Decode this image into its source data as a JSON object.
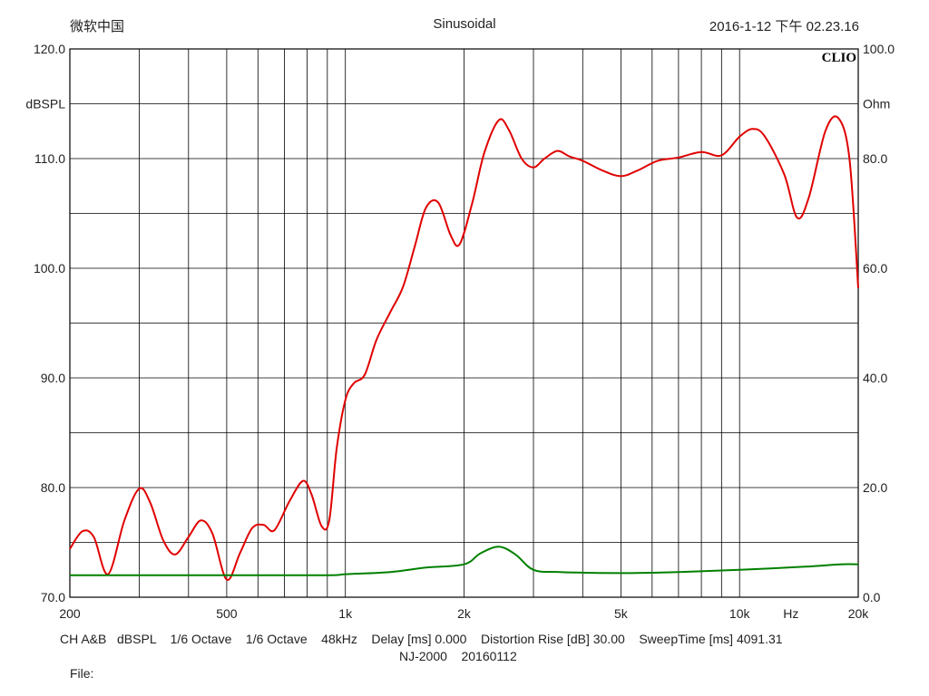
{
  "header": {
    "brand": "微软中国",
    "title": "Sinusoidal",
    "timestamp": "2016-1-12 下午 02.23.16"
  },
  "logo_text": "CLIO",
  "footer": {
    "line1": "CH A&B   dBSPL    1/6 Octave    1/6 Octave    48kHz    Delay [ms] 0.000    Distortion Rise [dB] 30.00    SweepTime [ms] 4091.31",
    "line2": "NJ-2000    20160112",
    "line3": "File:"
  },
  "chart_data": {
    "type": "line",
    "xscale": "log",
    "xlim": [
      200,
      20000
    ],
    "x_ticks": [
      {
        "value": 200,
        "label": "200"
      },
      {
        "value": 500,
        "label": "500"
      },
      {
        "value": 1000,
        "label": "1k"
      },
      {
        "value": 2000,
        "label": "2k"
      },
      {
        "value": 5000,
        "label": "5k"
      },
      {
        "value": 10000,
        "label": "10k"
      },
      {
        "value": 20000,
        "label": "20k"
      }
    ],
    "x_unit": "Hz",
    "left_axis": {
      "unit": "dBSPL",
      "ylim": [
        70,
        120
      ],
      "ticks": [
        {
          "value": 70,
          "label": "70.0"
        },
        {
          "value": 80,
          "label": "80.0"
        },
        {
          "value": 90,
          "label": "90.0"
        },
        {
          "value": 100,
          "label": "100.0"
        },
        {
          "value": 110,
          "label": "110.0"
        },
        {
          "value": 120,
          "label": "120.0"
        }
      ]
    },
    "right_axis": {
      "unit": "Ohm",
      "ylim": [
        0,
        100
      ],
      "ticks": [
        {
          "value": 0,
          "label": "0.0"
        },
        {
          "value": 20,
          "label": "20.0"
        },
        {
          "value": 40,
          "label": "40.0"
        },
        {
          "value": 60,
          "label": "60.0"
        },
        {
          "value": 80,
          "label": "80.0"
        },
        {
          "value": 100,
          "label": "100.0"
        }
      ]
    },
    "grid": true,
    "series": [
      {
        "axis": "left",
        "color": "#e00000",
        "points": [
          [
            200,
            74.4
          ],
          [
            215,
            76.0
          ],
          [
            230,
            75.5
          ],
          [
            250,
            72.1
          ],
          [
            275,
            77.0
          ],
          [
            300,
            79.9
          ],
          [
            320,
            78.6
          ],
          [
            345,
            75.2
          ],
          [
            370,
            73.9
          ],
          [
            400,
            75.5
          ],
          [
            430,
            77.0
          ],
          [
            460,
            75.8
          ],
          [
            500,
            71.6
          ],
          [
            540,
            74.0
          ],
          [
            580,
            76.3
          ],
          [
            620,
            76.6
          ],
          [
            660,
            76.1
          ],
          [
            720,
            78.7
          ],
          [
            780,
            80.6
          ],
          [
            820,
            79.4
          ],
          [
            870,
            76.5
          ],
          [
            910,
            77.0
          ],
          [
            950,
            83.5
          ],
          [
            1000,
            88.0
          ],
          [
            1050,
            89.5
          ],
          [
            1120,
            90.3
          ],
          [
            1200,
            93.5
          ],
          [
            1300,
            96.0
          ],
          [
            1400,
            98.3
          ],
          [
            1500,
            102.0
          ],
          [
            1600,
            105.5
          ],
          [
            1720,
            106.0
          ],
          [
            1850,
            103.0
          ],
          [
            1950,
            102.2
          ],
          [
            2100,
            106.0
          ],
          [
            2250,
            110.5
          ],
          [
            2450,
            113.5
          ],
          [
            2600,
            112.6
          ],
          [
            2800,
            110.0
          ],
          [
            3000,
            109.2
          ],
          [
            3200,
            110.0
          ],
          [
            3450,
            110.7
          ],
          [
            3700,
            110.2
          ],
          [
            4000,
            109.8
          ],
          [
            4500,
            108.9
          ],
          [
            5000,
            108.4
          ],
          [
            5500,
            108.9
          ],
          [
            6200,
            109.8
          ],
          [
            7000,
            110.1
          ],
          [
            8000,
            110.6
          ],
          [
            9000,
            110.3
          ],
          [
            10000,
            112.0
          ],
          [
            10800,
            112.7
          ],
          [
            11600,
            112.0
          ],
          [
            13000,
            108.5
          ],
          [
            14000,
            104.6
          ],
          [
            15000,
            106.5
          ],
          [
            16500,
            112.5
          ],
          [
            17800,
            113.7
          ],
          [
            19000,
            110.0
          ],
          [
            20000,
            98.2
          ]
        ]
      },
      {
        "axis": "right",
        "color": "#008000",
        "points": [
          [
            200,
            4.0
          ],
          [
            500,
            4.0
          ],
          [
            900,
            4.0
          ],
          [
            1000,
            4.2
          ],
          [
            1300,
            4.6
          ],
          [
            1600,
            5.4
          ],
          [
            2000,
            6.0
          ],
          [
            2200,
            8.0
          ],
          [
            2450,
            9.2
          ],
          [
            2700,
            7.8
          ],
          [
            3000,
            5.0
          ],
          [
            3500,
            4.6
          ],
          [
            5000,
            4.4
          ],
          [
            7000,
            4.6
          ],
          [
            10000,
            5.0
          ],
          [
            15000,
            5.6
          ],
          [
            18000,
            6.0
          ],
          [
            20000,
            6.0
          ]
        ]
      }
    ]
  }
}
